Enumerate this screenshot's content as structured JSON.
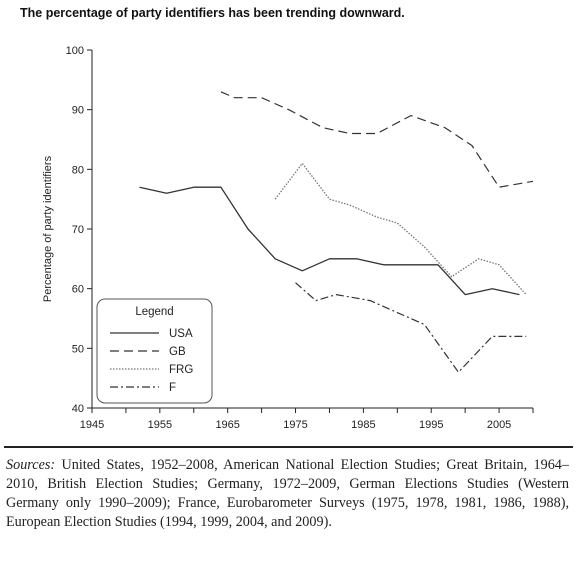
{
  "title": "The percentage of party identifiers has been trending downward.",
  "source_prefix": "Sources:",
  "source_text": " United States, 1952–2008, American National Election Studies; Great Britain, 1964–2010, British Election Studies; Germany, 1972–2009, German Elections Studies (Western Germany only 1990–2009); France, Eurobarometer Surveys (1975, 1978, 1981, 1986, 1988), European Election Studies (1994, 1999, 2004, and 2009).",
  "chart_data": {
    "type": "line",
    "title": "The percentage of party identifiers has been trending downward.",
    "xlabel": "",
    "ylabel": "Percentage of party identifiers",
    "xlim": [
      1945,
      2010
    ],
    "ylim": [
      40,
      100
    ],
    "xticks": [
      1945,
      1955,
      1965,
      1975,
      1985,
      1995,
      2005
    ],
    "yticks": [
      40,
      50,
      60,
      70,
      80,
      90,
      100
    ],
    "grid": false,
    "legend_title": "Legend",
    "legend_position": "bottom-left",
    "series": [
      {
        "name": "USA",
        "style": "solid",
        "color": "#333333",
        "x": [
          1952,
          1956,
          1960,
          1964,
          1968,
          1972,
          1976,
          1980,
          1984,
          1988,
          1992,
          1996,
          2000,
          2004,
          2008
        ],
        "y": [
          77,
          76,
          77,
          77,
          70,
          65,
          63,
          65,
          65,
          64,
          64,
          64,
          59,
          60,
          59
        ]
      },
      {
        "name": "GB",
        "style": "dashed",
        "color": "#333333",
        "x": [
          1964,
          1966,
          1970,
          1974,
          1979,
          1983,
          1987,
          1992,
          1997,
          2001,
          2005,
          2010
        ],
        "y": [
          93,
          92,
          92,
          90,
          87,
          86,
          86,
          89,
          87,
          84,
          77,
          78
        ]
      },
      {
        "name": "FRG",
        "style": "dotted",
        "color": "#777777",
        "x": [
          1972,
          1976,
          1980,
          1983,
          1987,
          1990,
          1994,
          1998,
          2002,
          2005,
          2009
        ],
        "y": [
          75,
          81,
          75,
          74,
          72,
          71,
          67,
          62,
          65,
          64,
          59
        ]
      },
      {
        "name": "F",
        "style": "dashdot",
        "color": "#333333",
        "x": [
          1975,
          1978,
          1981,
          1986,
          1988,
          1994,
          1999,
          2004,
          2009
        ],
        "y": [
          61,
          58,
          59,
          58,
          57,
          54,
          46,
          52,
          52
        ]
      }
    ]
  }
}
